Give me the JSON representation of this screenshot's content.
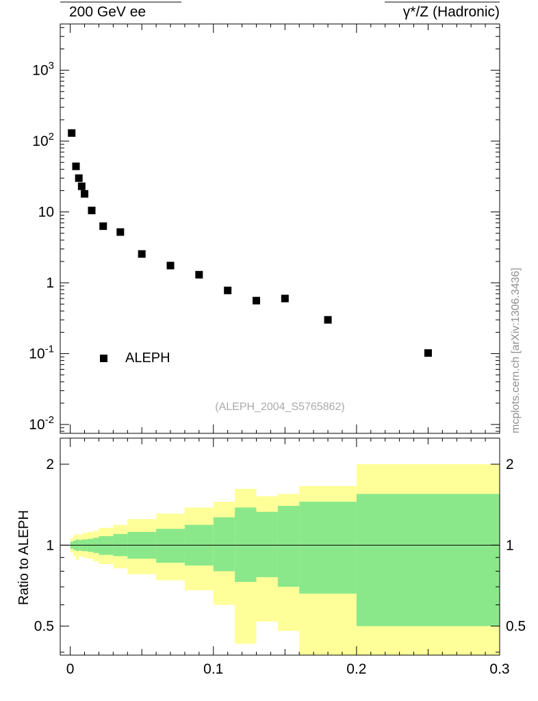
{
  "header": {
    "title_left": "200 GeV ee",
    "title_right": "γ*/Z (Hadronic)"
  },
  "side_caption": "mcplots.cern.ch [arXiv:1306.3436]",
  "watermark": "(ALEPH_2004_S5765862)",
  "legend": {
    "label": "ALEPH",
    "marker": "filled-black-square"
  },
  "ratio_ylabel": "Ratio to ALEPH",
  "colors": {
    "band_outer": "#ffff99",
    "band_inner": "#8ae88a",
    "marker": "#000000",
    "frame": "#000000",
    "gray_text": "#999999"
  },
  "chart_data": [
    {
      "type": "scatter",
      "yscale": "log",
      "xlim": [
        -0.007,
        0.3
      ],
      "ylim": [
        0.0075,
        4500
      ],
      "series": [
        {
          "name": "ALEPH",
          "marker": "filled-square",
          "color": "#000000",
          "points": [
            [
              0.001,
              130
            ],
            [
              0.004,
              44
            ],
            [
              0.006,
              30
            ],
            [
              0.008,
              23
            ],
            [
              0.01,
              18
            ],
            [
              0.015,
              10.5
            ],
            [
              0.023,
              6.3
            ],
            [
              0.035,
              5.2
            ],
            [
              0.05,
              2.55
            ],
            [
              0.07,
              1.75
            ],
            [
              0.09,
              1.3
            ],
            [
              0.11,
              0.78
            ],
            [
              0.13,
              0.56
            ],
            [
              0.15,
              0.6
            ],
            [
              0.18,
              0.3
            ],
            [
              0.25,
              0.102
            ]
          ]
        }
      ],
      "yticks": {
        "values": [
          1000,
          100,
          10,
          1,
          0.1,
          0.01
        ],
        "labels": [
          "10^3",
          "10^2",
          "10",
          "1",
          "10^-1",
          "10^-2"
        ]
      },
      "xticks": {
        "major": [
          0,
          0.1,
          0.2,
          0.3
        ],
        "labels": [
          "",
          "",
          "",
          ""
        ],
        "medium_step": 0.05,
        "minor_step": 0.01,
        "show_labels": false
      }
    },
    {
      "type": "band-steps",
      "yscale": "log",
      "xlim": [
        -0.007,
        0.3
      ],
      "ylim": [
        0.39,
        2.5
      ],
      "reference_line": 1.0,
      "ylabel": "Ratio to ALEPH",
      "yticks": {
        "values": [
          0.5,
          1,
          2
        ],
        "labels": [
          "0.5",
          "1",
          "2"
        ],
        "mirror": true
      },
      "xticks": {
        "major": [
          0,
          0.1,
          0.2,
          0.3
        ],
        "labels": [
          "0",
          "0.1",
          "0.2",
          "0.3"
        ],
        "medium_step": 0.05,
        "minor_step": 0.01,
        "show_labels": true
      },
      "bands": [
        {
          "x": [
            0.0,
            0.002
          ],
          "inner": [
            0.97,
            1.03
          ],
          "outer": [
            0.94,
            1.06
          ]
        },
        {
          "x": [
            0.002,
            0.004
          ],
          "inner": [
            0.96,
            1.04
          ],
          "outer": [
            0.91,
            1.09
          ]
        },
        {
          "x": [
            0.004,
            0.006
          ],
          "inner": [
            0.95,
            1.05
          ],
          "outer": [
            0.88,
            1.1
          ]
        },
        {
          "x": [
            0.006,
            0.008
          ],
          "inner": [
            0.955,
            1.045
          ],
          "outer": [
            0.91,
            1.09
          ]
        },
        {
          "x": [
            0.008,
            0.012
          ],
          "inner": [
            0.95,
            1.05
          ],
          "outer": [
            0.9,
            1.11
          ]
        },
        {
          "x": [
            0.012,
            0.016
          ],
          "inner": [
            0.945,
            1.055
          ],
          "outer": [
            0.89,
            1.12
          ]
        },
        {
          "x": [
            0.016,
            0.02
          ],
          "inner": [
            0.935,
            1.065
          ],
          "outer": [
            0.87,
            1.13
          ]
        },
        {
          "x": [
            0.02,
            0.03
          ],
          "inner": [
            0.92,
            1.08
          ],
          "outer": [
            0.85,
            1.16
          ]
        },
        {
          "x": [
            0.03,
            0.04
          ],
          "inner": [
            0.91,
            1.1
          ],
          "outer": [
            0.82,
            1.19
          ]
        },
        {
          "x": [
            0.04,
            0.06
          ],
          "inner": [
            0.89,
            1.12
          ],
          "outer": [
            0.78,
            1.25
          ]
        },
        {
          "x": [
            0.06,
            0.08
          ],
          "inner": [
            0.86,
            1.15
          ],
          "outer": [
            0.74,
            1.31
          ]
        },
        {
          "x": [
            0.08,
            0.1
          ],
          "inner": [
            0.84,
            1.19
          ],
          "outer": [
            0.68,
            1.38
          ]
        },
        {
          "x": [
            0.1,
            0.115
          ],
          "inner": [
            0.8,
            1.27
          ],
          "outer": [
            0.6,
            1.45
          ]
        },
        {
          "x": [
            0.115,
            0.13
          ],
          "inner": [
            0.73,
            1.38
          ],
          "outer": [
            0.43,
            1.62
          ]
        },
        {
          "x": [
            0.13,
            0.145
          ],
          "inner": [
            0.76,
            1.33
          ],
          "outer": [
            0.52,
            1.52
          ]
        },
        {
          "x": [
            0.145,
            0.16
          ],
          "inner": [
            0.7,
            1.4
          ],
          "outer": [
            0.48,
            1.55
          ]
        },
        {
          "x": [
            0.16,
            0.2
          ],
          "inner": [
            0.66,
            1.45
          ],
          "outer": [
            0.36,
            1.66
          ]
        },
        {
          "x": [
            0.2,
            0.3
          ],
          "inner": [
            0.5,
            1.55
          ],
          "outer": [
            0.36,
            2.0
          ]
        }
      ]
    }
  ]
}
